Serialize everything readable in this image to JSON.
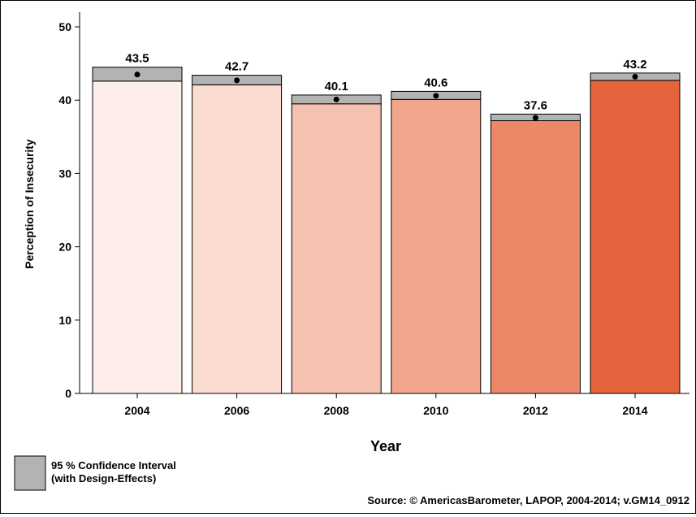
{
  "chart_data": {
    "type": "bar",
    "categories": [
      "2004",
      "2006",
      "2008",
      "2010",
      "2012",
      "2014"
    ],
    "values": [
      43.5,
      42.7,
      40.1,
      40.6,
      37.6,
      43.2
    ],
    "ci_lower": [
      42.6,
      42.1,
      39.5,
      40.1,
      37.2,
      42.7
    ],
    "ci_upper": [
      44.5,
      43.4,
      40.7,
      41.2,
      38.1,
      43.7
    ],
    "value_labels": [
      "43.5",
      "42.7",
      "40.1",
      "40.6",
      "37.6",
      "43.2"
    ],
    "bar_colors": [
      "#fdeeea",
      "#fadcd0",
      "#f5c1b0",
      "#f1a68c",
      "#ec8768",
      "#e6643d"
    ],
    "ci_color": "#b3b3b3",
    "xlabel": "Year",
    "ylabel": "Perception of Insecurity",
    "ylim": [
      0,
      52
    ],
    "yticks": [
      0,
      10,
      20,
      30,
      40,
      50
    ],
    "legend": {
      "label_line1": "95 % Confidence Interval",
      "label_line2": "(with Design-Effects)",
      "position": "bottom-left"
    },
    "source": "Source: © AmericasBarometer, LAPOP, 2004-2014; v.GM14_0912"
  }
}
